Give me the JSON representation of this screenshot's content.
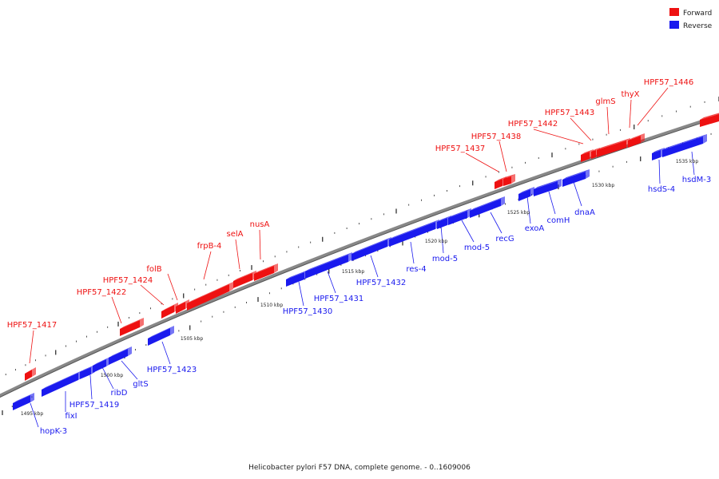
{
  "caption": "Helicobacter pylori F57 DNA, complete genome. - 0..1609006",
  "legend": [
    {
      "label": "Forward",
      "color": "#ee1111"
    },
    {
      "label": "Reverse",
      "color": "#1a1aee"
    }
  ],
  "colors": {
    "forward": "#ee1111",
    "reverse": "#1a1aee",
    "backbone": "#888888"
  },
  "genes": [
    {
      "label": "HPF57_1417",
      "strand": "forward"
    },
    {
      "label": "HPF57_1422",
      "strand": "forward"
    },
    {
      "label": "HPF57_1424",
      "strand": "forward"
    },
    {
      "label": "folB",
      "strand": "forward"
    },
    {
      "label": "frpB-4",
      "strand": "forward"
    },
    {
      "label": "selA",
      "strand": "forward"
    },
    {
      "label": "nusA",
      "strand": "forward"
    },
    {
      "label": "HPF57_1437",
      "strand": "forward"
    },
    {
      "label": "HPF57_1438",
      "strand": "forward"
    },
    {
      "label": "HPF57_1442",
      "strand": "forward"
    },
    {
      "label": "HPF57_1443",
      "strand": "forward"
    },
    {
      "label": "glmS",
      "strand": "forward"
    },
    {
      "label": "thyX",
      "strand": "forward"
    },
    {
      "label": "HPF57_1446",
      "strand": "forward"
    },
    {
      "label": "hopK-3",
      "strand": "reverse"
    },
    {
      "label": "fixI",
      "strand": "reverse"
    },
    {
      "label": "HPF57_1419",
      "strand": "reverse"
    },
    {
      "label": "ribD",
      "strand": "reverse"
    },
    {
      "label": "gltS",
      "strand": "reverse"
    },
    {
      "label": "HPF57_1423",
      "strand": "reverse"
    },
    {
      "label": "HPF57_1430",
      "strand": "reverse"
    },
    {
      "label": "HPF57_1431",
      "strand": "reverse"
    },
    {
      "label": "HPF57_1432",
      "strand": "reverse"
    },
    {
      "label": "res-4",
      "strand": "reverse"
    },
    {
      "label": "mod-5",
      "strand": "reverse"
    },
    {
      "label": "mod-5",
      "strand": "reverse"
    },
    {
      "label": "recG",
      "strand": "reverse"
    },
    {
      "label": "exoA",
      "strand": "reverse"
    },
    {
      "label": "comH",
      "strand": "reverse"
    },
    {
      "label": "dnaA",
      "strand": "reverse"
    },
    {
      "label": "hsdS-4",
      "strand": "reverse"
    },
    {
      "label": "hsdM-3",
      "strand": "reverse"
    }
  ],
  "scale_labels": [
    "1495 kbp",
    "1500 kbp",
    "1505 kbp",
    "1510 kbp",
    "1515 kbp",
    "1520 kbp",
    "1525 kbp",
    "1530 kbp",
    "1535 kbp"
  ]
}
